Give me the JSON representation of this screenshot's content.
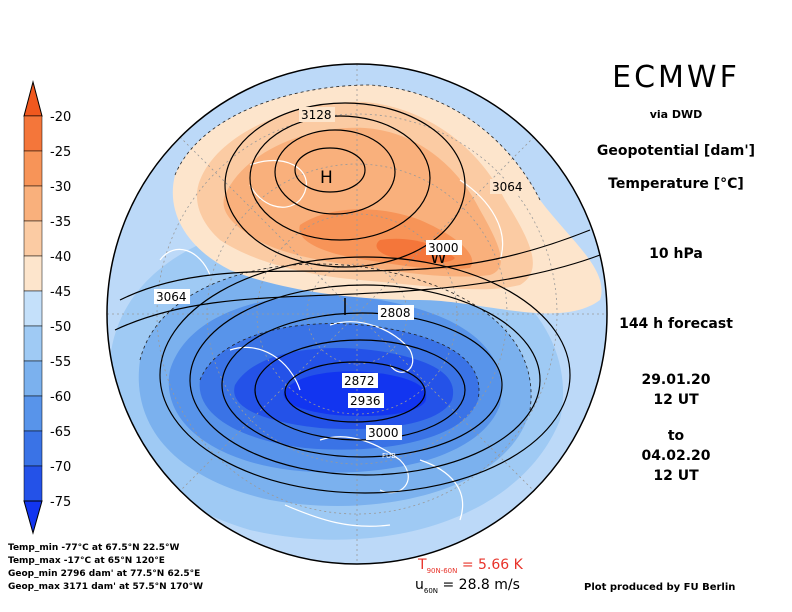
{
  "header": {
    "source": "ECMWF",
    "via": "via DWD",
    "variable1": "Geopotential [dam']",
    "variable2": "Temperature [°C]",
    "level": "10 hPa",
    "forecast": "144 h forecast",
    "init_date": "29.01.20",
    "init_time": "12 UT",
    "to": "to",
    "valid_date": "04.02.20",
    "valid_time": "12 UT"
  },
  "colorbar": {
    "labels": [
      "-20",
      "-25",
      "-30",
      "-35",
      "-40",
      "-45",
      "-50",
      "-55",
      "-60",
      "-65",
      "-70",
      "-75"
    ],
    "colors": [
      "#f0581e",
      "#f4763a",
      "#f79458",
      "#f9b07c",
      "#fbcba3",
      "#fde5cc",
      "#c4e0fa",
      "#9fcaf4",
      "#7bb1ee",
      "#5894ea",
      "#3a73e6",
      "#2452e8",
      "#1235f0"
    ]
  },
  "map": {
    "center_labels": [
      "H",
      "W"
    ],
    "contour_labels": [
      "3128",
      "3064",
      "3000",
      "3064",
      "2808",
      "2872",
      "2936",
      "3000"
    ],
    "marker": "FUB"
  },
  "stats": {
    "temp_min": "Temp_min -77°C at 67.5°N 22.5°W",
    "temp_max": "Temp_max -17°C at 65°N 120°E",
    "geop_min": "Geop_min 2796 dam' at 77.5°N 62.5°E",
    "geop_max": "Geop_max 3171 dam' at 57.5°N 170°W"
  },
  "footer": {
    "t_label": "T",
    "t_sub": "90N-60N",
    "t_value": "= 5.66 K",
    "u_label": "u",
    "u_sub": "60N",
    "u_value": "= 28.8 m/s",
    "credit": "Plot produced by FU Berlin"
  }
}
